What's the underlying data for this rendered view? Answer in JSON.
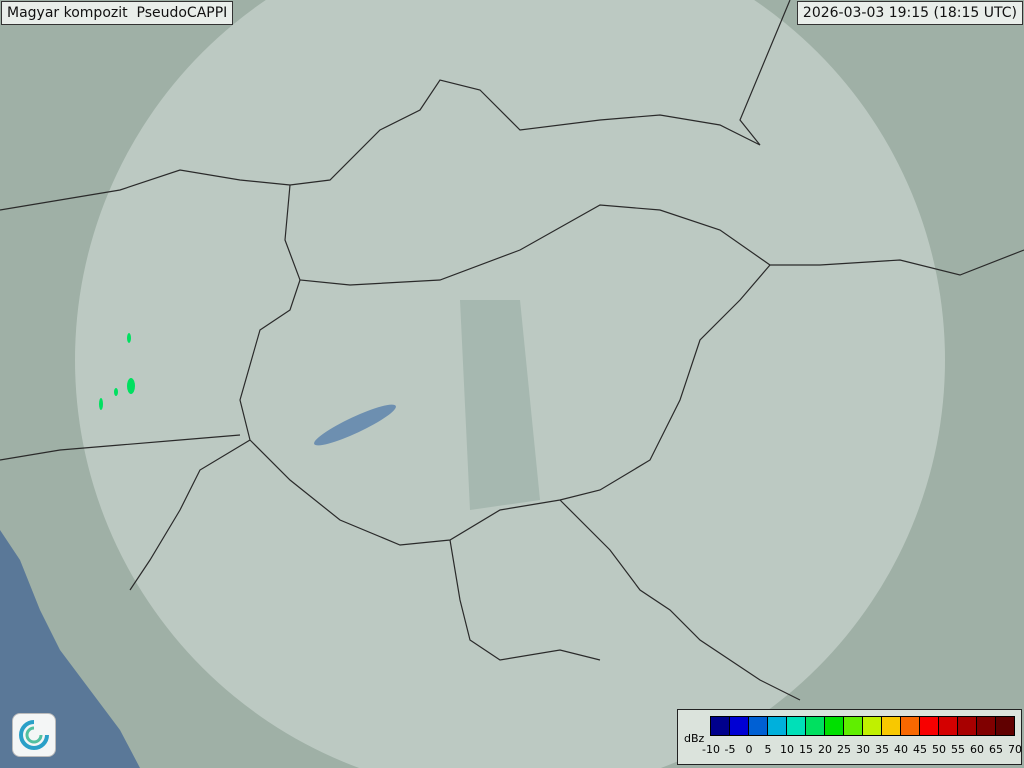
{
  "header": {
    "title": "Magyar kompozit  PseudoCAPPI",
    "timestamp": "2026-03-03 19:15 (18:15 UTC)"
  },
  "map": {
    "land_color": "#9fb0a6",
    "coverage_color": "#dfe9e4",
    "sea_color": "#5a7898",
    "border_color": "#2a2a2a",
    "echo_color": "#00e060"
  },
  "legend": {
    "unit": "dBz",
    "ticks": [
      "-10",
      "-5",
      "0",
      "5",
      "10",
      "15",
      "20",
      "25",
      "30",
      "35",
      "40",
      "45",
      "50",
      "55",
      "60",
      "65",
      "70"
    ],
    "colors": [
      "#00008c",
      "#0000d4",
      "#0060d4",
      "#00b0dc",
      "#00e0b8",
      "#00e060",
      "#00e000",
      "#60ee00",
      "#c0f000",
      "#f8c800",
      "#f86800",
      "#f80000",
      "#d40000",
      "#a80000",
      "#800000",
      "#600000"
    ]
  },
  "logo": {
    "icon": "omsz-swirl-logo"
  }
}
